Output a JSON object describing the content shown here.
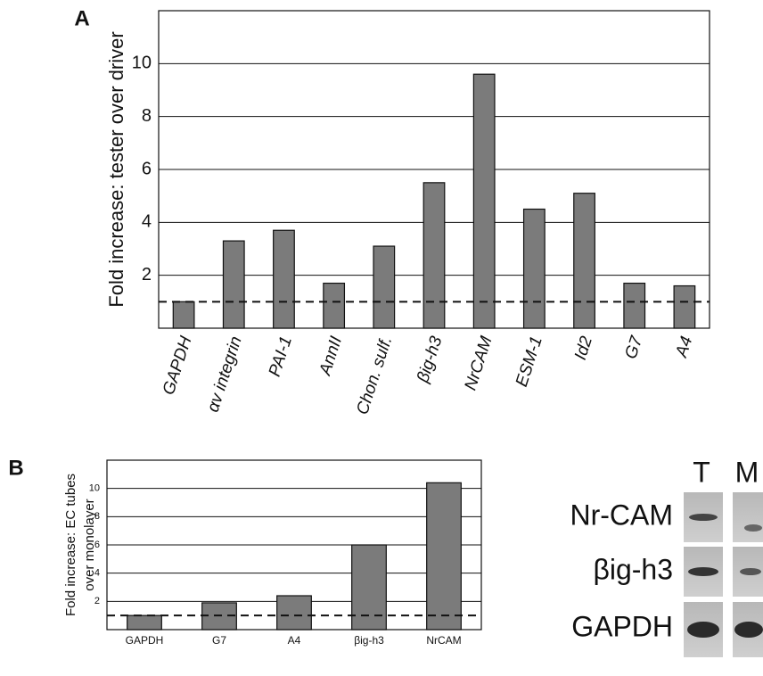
{
  "chart_data": [
    {
      "type": "bar",
      "panel": "A",
      "y_label": "Fold increase: tester over driver",
      "categories": [
        "GAPDH",
        "αv integrin",
        "PAI-1",
        "AnnII",
        "Chon. sulf.",
        "βig-h3",
        "NrCAM",
        "ESM-1",
        "Id2",
        "G7",
        "A4"
      ],
      "values": [
        1.0,
        3.3,
        3.7,
        1.7,
        3.1,
        5.5,
        9.6,
        4.5,
        5.1,
        1.7,
        1.6
      ],
      "color": "#7b7b7b",
      "ylim": [
        0,
        12
      ],
      "yticks": [
        2,
        4,
        6,
        8,
        10
      ],
      "grid": true,
      "reference_line": 1
    },
    {
      "type": "bar",
      "panel": "B",
      "y_label": [
        "Fold increase: EC tubes",
        "over monolayer"
      ],
      "categories": [
        "GAPDH",
        "G7",
        "A4",
        "βig-h3",
        "NrCAM"
      ],
      "values": [
        1.0,
        1.9,
        2.4,
        6.0,
        10.4
      ],
      "color": "#7b7b7b",
      "ylim": [
        0,
        12
      ],
      "yticks": [
        2,
        4,
        6,
        8,
        10
      ],
      "grid": true,
      "reference_line": 1
    }
  ],
  "blot": {
    "columns": [
      "T",
      "M"
    ],
    "rows": [
      "Nr-CAM",
      "βig-h3",
      "GAPDH"
    ]
  }
}
